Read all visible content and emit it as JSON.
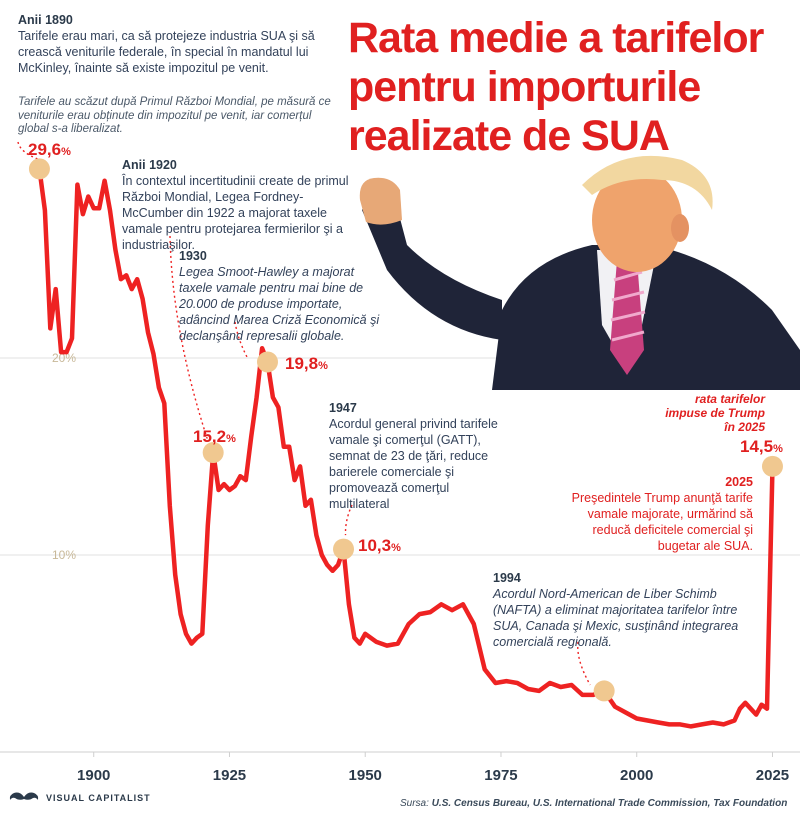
{
  "title": "Rata medie a tarifelor pentru importurile realizate de SUA",
  "intro_note": "Tarifele au scăzut după Primul Război Mondial, pe măsură ce veniturile erau obținute din impozitul pe venit, iar comerțul global s-a liberalizat.",
  "annotations": {
    "a1890": {
      "year": "Anii 1890",
      "text": "Tarifele erau mari, ca să protejeze industria SUA şi să crească veniturile federale, în special în mandatul lui McKinley, înainte să existe impozitul pe venit."
    },
    "a1920": {
      "year": "Anii 1920",
      "text": "În contextul incertitudinii create de primul Război Mondial, Legea Fordney-McCumber din 1922 a majorat taxele vamale pentru protejarea fermierilor şi a industriaşilor."
    },
    "a1930": {
      "year": "1930",
      "text": "Legea Smoot-Hawley a majorat taxele vamale pentru mai bine de 20.000 de produse importate, adâncind Marea Criză Economică şi declanşând represalii globale."
    },
    "a1947": {
      "year": "1947",
      "text": "Acordul general privind tarifele vamale şi comerţul (GATT), semnat de 23 de ţări, reduce barierele comerciale şi promovează comerţul multilateral"
    },
    "a1994": {
      "year": "1994",
      "text": "Acordul Nord-American de Liber Schimb (NAFTA) a eliminat majoritatea tarifelor între SUA, Canada şi Mexic, susţinând integrarea comercială regională."
    },
    "a2025": {
      "year": "2025",
      "text": "Preşedintele Trump anunţă tarife vamale majorate, urmărind să reducă deficitele comercial şi bugetar ale SUA."
    },
    "trump_rate": "rata tarifelor impuse de Trump în 2025"
  },
  "value_labels": {
    "v1890": "29,6",
    "v1922": "15,2",
    "v1932": "19,8",
    "v1946": "10,3",
    "v2025": "14,5",
    "unit": "%"
  },
  "footer": {
    "logo": "VISUAL CAPITALIST",
    "source_label": "Sursa:",
    "source_text": "U.S. Census Bureau, U.S. International Trade Commission, Tax Foundation"
  },
  "colors": {
    "line": "#ee2222",
    "marker": "#f0c890",
    "title": "#e02020",
    "grid": "#d8d8d8",
    "axis_label": "#c8b898"
  },
  "chart_data": {
    "type": "line",
    "title": "Rata medie a tarifelor pentru importurile realizate de SUA",
    "xlabel": "",
    "ylabel": "",
    "xlim": [
      1889,
      2026
    ],
    "ylim": [
      0,
      31
    ],
    "x_ticks": [
      1900,
      1925,
      1950,
      1975,
      2000,
      2025
    ],
    "y_ticks": [
      10,
      20
    ],
    "y_tick_labels": [
      "10%",
      "20%"
    ],
    "grid": true,
    "series": [
      {
        "x": [
          1890,
          1891,
          1892,
          1893,
          1894,
          1895,
          1896,
          1897,
          1898,
          1899,
          1900,
          1901,
          1902,
          1903,
          1904,
          1905,
          1906,
          1907,
          1908,
          1909,
          1910,
          1911,
          1912,
          1913,
          1914,
          1915,
          1916,
          1917,
          1918,
          1919,
          1920,
          1921,
          1922,
          1923,
          1924,
          1925,
          1926,
          1927,
          1928,
          1929,
          1930,
          1931,
          1932,
          1933,
          1934,
          1935,
          1936,
          1937,
          1938,
          1939,
          1940,
          1941,
          1942,
          1943,
          1944,
          1945,
          1946,
          1947,
          1948,
          1949,
          1950,
          1952,
          1954,
          1956,
          1958,
          1960,
          1962,
          1964,
          1966,
          1968,
          1970,
          1972,
          1974,
          1976,
          1978,
          1980,
          1982,
          1984,
          1986,
          1988,
          1990,
          1992,
          1994,
          1996,
          1998,
          2000,
          2002,
          2004,
          2006,
          2008,
          2010,
          2012,
          2014,
          2016,
          2018,
          2019,
          2020,
          2022,
          2023,
          2024,
          2025
        ],
        "y": [
          29.6,
          27.5,
          21.5,
          23.5,
          20.3,
          20.3,
          21.0,
          28.8,
          27.3,
          28.2,
          27.6,
          27.6,
          29.0,
          27.5,
          25.5,
          24.0,
          24.2,
          23.5,
          24.0,
          23.0,
          21.3,
          20.2,
          18.5,
          17.7,
          12.5,
          9.0,
          7.0,
          6.0,
          5.5,
          5.8,
          6.0,
          11.5,
          15.2,
          13.3,
          13.6,
          13.3,
          13.5,
          14.0,
          13.8,
          16.0,
          18.0,
          20.5,
          19.8,
          18.0,
          17.5,
          15.5,
          15.5,
          13.8,
          14.5,
          12.5,
          12.8,
          11.0,
          10.0,
          9.5,
          9.2,
          9.5,
          10.3,
          7.5,
          5.8,
          5.5,
          6.0,
          5.6,
          5.4,
          5.5,
          6.5,
          7.0,
          7.1,
          7.5,
          7.2,
          7.5,
          6.5,
          4.2,
          3.5,
          3.6,
          3.5,
          3.2,
          3.1,
          3.5,
          3.3,
          3.4,
          2.9,
          2.9,
          3.1,
          2.3,
          2.0,
          1.7,
          1.6,
          1.5,
          1.4,
          1.4,
          1.3,
          1.4,
          1.5,
          1.4,
          1.6,
          2.2,
          2.5,
          1.9,
          2.4,
          2.2,
          14.5
        ]
      }
    ],
    "highlights": [
      {
        "x": 1890,
        "y": 29.6
      },
      {
        "x": 1922,
        "y": 15.2
      },
      {
        "x": 1932,
        "y": 19.8
      },
      {
        "x": 1946,
        "y": 10.3
      },
      {
        "x": 1994,
        "y": 3.1
      },
      {
        "x": 2025,
        "y": 14.5
      }
    ]
  }
}
